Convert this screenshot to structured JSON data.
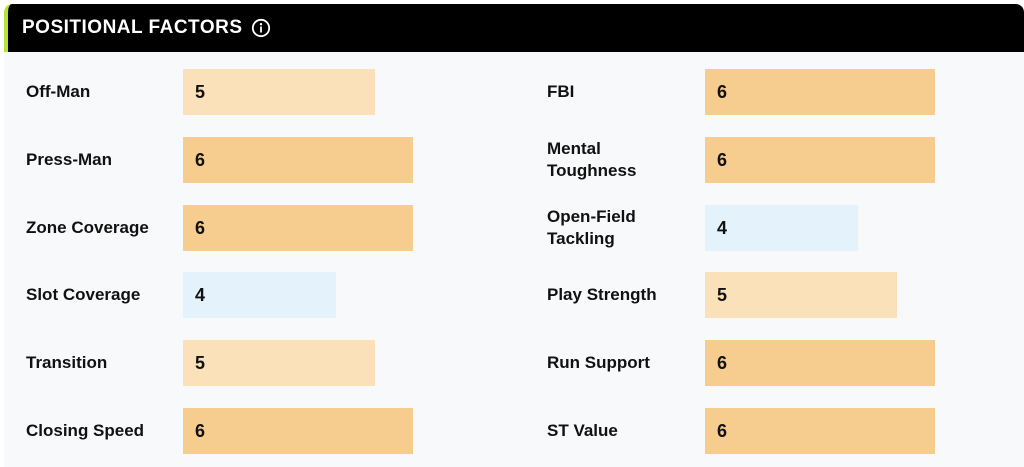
{
  "header": {
    "title": "POSITIONAL FACTORS",
    "info_icon": "info-icon"
  },
  "colors": {
    "score_6": "#f6cd8e",
    "score_5": "#fae1b9",
    "score_4": "#e4f2fc",
    "accent": "#b6e23a"
  },
  "scale_max": 7,
  "left_factors": [
    {
      "label": "Off-Man",
      "value": 5
    },
    {
      "label": "Press-Man",
      "value": 6
    },
    {
      "label": "Zone Coverage",
      "value": 6
    },
    {
      "label": "Slot Coverage",
      "value": 4
    },
    {
      "label": "Transition",
      "value": 5
    },
    {
      "label": "Closing Speed",
      "value": 6
    }
  ],
  "right_factors": [
    {
      "label": "FBI",
      "value": 6
    },
    {
      "label": "Mental Toughness",
      "value": 6
    },
    {
      "label": "Open-Field Tackling",
      "value": 4
    },
    {
      "label": "Play Strength",
      "value": 5
    },
    {
      "label": "Run Support",
      "value": 6
    },
    {
      "label": "ST Value",
      "value": 6
    }
  ]
}
